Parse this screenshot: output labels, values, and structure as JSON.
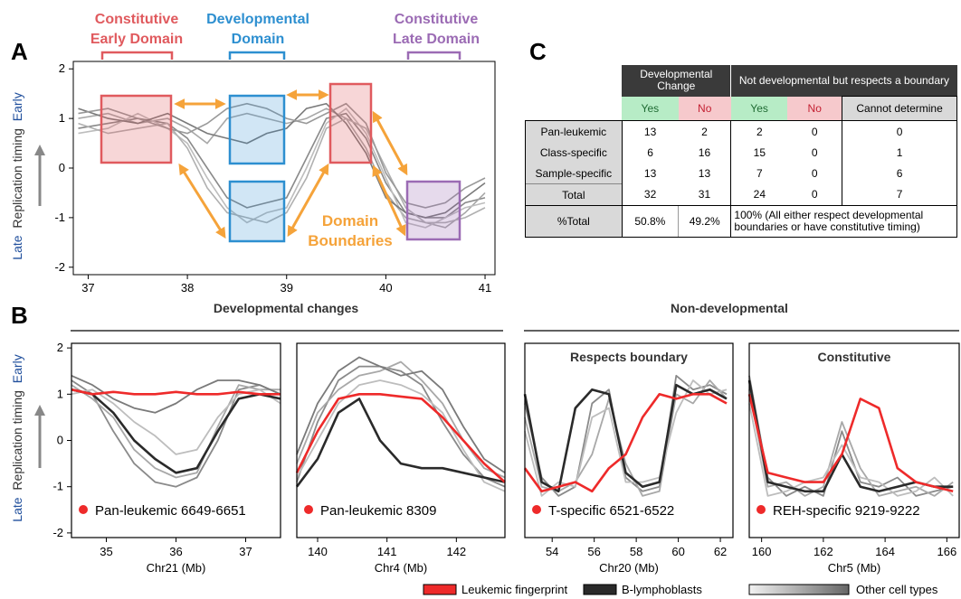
{
  "panel_labels": {
    "a": "A",
    "b": "B",
    "c": "C"
  },
  "panel_a": {
    "domains": [
      {
        "line1": "Constitutive",
        "line2": "Early Domain",
        "color": "#e05a5e"
      },
      {
        "line1": "Developmental",
        "line2": "Domain",
        "color": "#2d8fd0"
      },
      {
        "line1": "Constitutive",
        "line2": "Late Domain",
        "color": "#9b6bb4"
      }
    ],
    "boundary_label_1": "Domain",
    "boundary_label_2": "Boundaries",
    "boundary_color": "#f5a33a",
    "ylabel_late": "Late",
    "ylabel_main": "Replication timing",
    "ylabel_early": "Early",
    "xticks": [
      "37",
      "38",
      "39",
      "40",
      "41"
    ],
    "yticks": [
      "2",
      "1",
      "0",
      "-1",
      "-2"
    ]
  },
  "panel_b": {
    "section_developmental": "Developmental changes",
    "section_nondevelopmental": "Non-developmental",
    "subplots": [
      {
        "title": "",
        "legend": "Pan-leukemic 6649-6651",
        "xlabel": "Chr21 (Mb)",
        "xticks": [
          "35",
          "36",
          "37"
        ]
      },
      {
        "title": "",
        "legend": "Pan-leukemic 8309",
        "xlabel": "Chr4 (Mb)",
        "xticks": [
          "140",
          "141",
          "142"
        ]
      },
      {
        "title": "Respects boundary",
        "legend": "T-specific 6521-6522",
        "xlabel": "Chr20 (Mb)",
        "xticks": [
          "54",
          "56",
          "58",
          "60",
          "62"
        ]
      },
      {
        "title": "Constitutive",
        "legend": "REH-specific 9219-9222",
        "xlabel": "Chr5 (Mb)",
        "xticks": [
          "160",
          "162",
          "164",
          "166"
        ]
      }
    ],
    "ylabel_late": "Late",
    "ylabel_main": "Replication timing",
    "ylabel_early": "Early",
    "yticks": [
      "2",
      "1",
      "0",
      "-1",
      "-2"
    ],
    "legend": {
      "leukemic": "Leukemic fingerprint",
      "b_lymph": "B-lymphoblasts",
      "other": "Other cell types"
    },
    "colors": {
      "leukemic": "#ee2a2a",
      "b_lymph": "#2a2a2a",
      "other": "#9a9a9a"
    }
  },
  "panel_c": {
    "header_group_1": "Developmental Change",
    "header_group_2": "Not developmental but respects a boundary",
    "subheaders": [
      "Yes",
      "No",
      "Yes",
      "No",
      "Cannot determine"
    ],
    "rows": [
      {
        "label": "Pan-leukemic",
        "values": [
          "13",
          "2",
          "2",
          "0",
          "0"
        ]
      },
      {
        "label": "Class-specific",
        "values": [
          "6",
          "16",
          "15",
          "0",
          "1"
        ]
      },
      {
        "label": "Sample-specific",
        "values": [
          "13",
          "13",
          "7",
          "0",
          "6"
        ]
      },
      {
        "label": "Total",
        "values": [
          "32",
          "31",
          "24",
          "0",
          "7"
        ]
      }
    ],
    "pct_row": {
      "label": "%Total",
      "dev_yes": "50.8%",
      "dev_no": "49.2%",
      "note": "100% (All either respect developmental boundaries or have constitutive timing)"
    }
  },
  "chart_data": [
    {
      "type": "line",
      "panel": "A",
      "xlabel": "",
      "ylabel": "Replication timing",
      "xlim": [
        36.85,
        41.1
      ],
      "ylim": [
        -2.15,
        2.15
      ],
      "xticks": [
        37,
        38,
        39,
        40,
        41
      ],
      "yticks": [
        2,
        1,
        0,
        -1,
        -2
      ],
      "series_color": "#9a9a9a",
      "x": [
        36.9,
        37.2,
        37.5,
        37.8,
        38.0,
        38.2,
        38.4,
        38.6,
        38.8,
        39.0,
        39.2,
        39.4,
        39.6,
        39.8,
        40.0,
        40.2,
        40.4,
        40.6,
        40.8,
        41.0
      ],
      "series": [
        {
          "values": [
            0.8,
            0.9,
            1.0,
            0.9,
            0.6,
            0.0,
            -0.6,
            -0.8,
            -0.7,
            -0.6,
            0.2,
            1.0,
            1.1,
            0.6,
            -0.3,
            -0.9,
            -1.0,
            -1.0,
            -0.7,
            -0.6
          ]
        },
        {
          "values": [
            1.0,
            1.1,
            0.9,
            1.0,
            0.8,
            0.5,
            1.0,
            1.1,
            1.0,
            0.9,
            1.0,
            1.2,
            1.0,
            0.4,
            -0.5,
            -1.0,
            -1.1,
            -1.2,
            -0.9,
            -0.5
          ]
        },
        {
          "values": [
            0.7,
            0.8,
            1.1,
            0.8,
            0.5,
            -0.2,
            -0.8,
            -1.1,
            -0.9,
            -0.8,
            0.0,
            0.9,
            1.2,
            0.7,
            -0.2,
            -1.1,
            -1.2,
            -1.0,
            -0.8,
            -0.7
          ]
        },
        {
          "values": [
            1.2,
            1.0,
            0.9,
            1.1,
            0.9,
            0.7,
            0.6,
            0.5,
            0.7,
            0.8,
            1.2,
            1.3,
            0.9,
            0.3,
            -0.6,
            -0.9,
            -1.0,
            -0.9,
            -0.6,
            -0.3
          ]
        },
        {
          "values": [
            0.9,
            0.7,
            0.8,
            0.9,
            0.4,
            -0.4,
            -0.9,
            -1.0,
            -1.1,
            -0.9,
            -0.2,
            0.8,
            1.0,
            0.8,
            0.0,
            -0.8,
            -1.1,
            -1.1,
            -1.0,
            -0.8
          ]
        },
        {
          "values": [
            1.1,
            1.2,
            1.0,
            0.8,
            0.7,
            0.9,
            1.2,
            1.3,
            1.2,
            1.0,
            0.9,
            1.1,
            1.3,
            0.9,
            -0.1,
            -0.7,
            -0.8,
            -0.7,
            -0.4,
            -0.2
          ]
        }
      ]
    },
    {
      "type": "line",
      "panel": "B-1",
      "xlabel": "Chr21 (Mb)",
      "ylabel": "Replication timing",
      "xlim": [
        34.5,
        37.5
      ],
      "ylim": [
        -2.1,
        2.1
      ],
      "xticks": [
        35,
        36,
        37
      ],
      "x": [
        34.5,
        34.8,
        35.1,
        35.4,
        35.7,
        36.0,
        36.3,
        36.6,
        36.9,
        37.2,
        37.5
      ],
      "series": [
        {
          "name": "Leukemic fingerprint",
          "role": "leukemic",
          "values": [
            1.1,
            1.0,
            1.05,
            1.0,
            1.0,
            1.05,
            1.0,
            1.0,
            1.05,
            1.0,
            1.0
          ]
        },
        {
          "name": "B-lymphoblasts",
          "role": "b_lymph",
          "values": [
            1.1,
            1.0,
            0.6,
            0.0,
            -0.4,
            -0.7,
            -0.6,
            0.2,
            0.9,
            1.0,
            0.9
          ]
        },
        {
          "role": "other",
          "values": [
            1.3,
            1.0,
            0.2,
            -0.5,
            -0.9,
            -1.0,
            -0.8,
            0.0,
            1.1,
            1.2,
            1.0
          ]
        },
        {
          "role": "other",
          "values": [
            1.2,
            0.9,
            0.5,
            -0.2,
            -0.6,
            -0.8,
            -0.7,
            0.3,
            1.2,
            1.1,
            1.1
          ]
        },
        {
          "role": "other",
          "values": [
            1.0,
            1.1,
            0.8,
            0.4,
            0.1,
            -0.3,
            -0.2,
            0.5,
            1.0,
            1.1,
            0.8
          ]
        },
        {
          "role": "other",
          "values": [
            1.4,
            1.2,
            0.9,
            0.7,
            0.6,
            0.8,
            1.1,
            1.3,
            1.3,
            1.2,
            1.0
          ]
        }
      ]
    },
    {
      "type": "line",
      "panel": "B-2",
      "xlabel": "Chr4 (Mb)",
      "xlim": [
        139.7,
        142.7
      ],
      "ylim": [
        -2.1,
        2.1
      ],
      "xticks": [
        140,
        141,
        142
      ],
      "x": [
        139.7,
        140.0,
        140.3,
        140.6,
        140.9,
        141.2,
        141.5,
        141.8,
        142.1,
        142.4,
        142.7
      ],
      "series": [
        {
          "name": "Leukemic fingerprint",
          "role": "leukemic",
          "values": [
            -0.7,
            0.2,
            0.9,
            1.0,
            1.0,
            0.95,
            0.9,
            0.5,
            0.0,
            -0.5,
            -0.9
          ]
        },
        {
          "name": "B-lymphoblasts",
          "role": "b_lymph",
          "values": [
            -1.0,
            -0.4,
            0.6,
            0.9,
            0.0,
            -0.5,
            -0.6,
            -0.6,
            -0.7,
            -0.8,
            -0.9
          ]
        },
        {
          "role": "other",
          "values": [
            -0.9,
            0.4,
            1.3,
            1.6,
            1.6,
            1.5,
            1.2,
            0.4,
            -0.3,
            -0.8,
            -1.0
          ]
        },
        {
          "role": "other",
          "values": [
            -0.5,
            0.6,
            1.1,
            1.4,
            1.5,
            1.7,
            1.3,
            0.8,
            0.0,
            -0.6,
            -0.8
          ]
        },
        {
          "role": "other",
          "values": [
            -0.8,
            0.0,
            0.8,
            1.2,
            1.3,
            1.2,
            1.0,
            0.6,
            -0.2,
            -0.9,
            -1.1
          ]
        },
        {
          "role": "other",
          "values": [
            -0.3,
            0.8,
            1.5,
            1.8,
            1.6,
            1.4,
            1.5,
            1.1,
            0.3,
            -0.4,
            -0.7
          ]
        }
      ]
    },
    {
      "type": "line",
      "panel": "B-3",
      "title": "Respects boundary",
      "xlabel": "Chr20 (Mb)",
      "xlim": [
        52.7,
        62.6
      ],
      "ylim": [
        -2.1,
        2.1
      ],
      "xticks": [
        54,
        56,
        58,
        60,
        62
      ],
      "x": [
        52.7,
        53.5,
        54.3,
        55.1,
        55.9,
        56.7,
        57.5,
        58.3,
        59.1,
        59.9,
        60.7,
        61.5,
        62.3
      ],
      "series": [
        {
          "name": "Leukemic fingerprint",
          "role": "leukemic",
          "values": [
            -0.6,
            -1.1,
            -1.0,
            -0.9,
            -1.1,
            -0.6,
            -0.3,
            0.5,
            1.0,
            0.9,
            1.0,
            1.0,
            0.8
          ]
        },
        {
          "name": "B-lymphoblasts",
          "role": "b_lymph",
          "values": [
            1.0,
            -0.9,
            -1.1,
            0.7,
            1.1,
            1.0,
            -0.7,
            -1.0,
            -0.9,
            1.2,
            1.0,
            1.1,
            0.9
          ]
        },
        {
          "role": "other",
          "values": [
            0.8,
            -0.8,
            -1.2,
            -1.0,
            0.8,
            1.1,
            -0.8,
            -1.1,
            -1.0,
            1.4,
            1.1,
            1.2,
            1.0
          ]
        },
        {
          "role": "other",
          "values": [
            0.5,
            -1.0,
            -1.1,
            -0.9,
            -0.3,
            0.9,
            -0.5,
            -1.2,
            -1.1,
            1.0,
            0.8,
            1.3,
            0.9
          ]
        },
        {
          "role": "other",
          "values": [
            0.2,
            -1.2,
            -0.9,
            -1.0,
            0.5,
            0.7,
            -0.9,
            -0.9,
            -0.8,
            0.6,
            1.3,
            1.0,
            1.1
          ]
        }
      ]
    },
    {
      "type": "line",
      "panel": "B-4",
      "title": "Constitutive",
      "xlabel": "Chr5 (Mb)",
      "xlim": [
        159.6,
        166.4
      ],
      "ylim": [
        -2.1,
        2.1
      ],
      "xticks": [
        160,
        162,
        164,
        166
      ],
      "x": [
        159.6,
        160.2,
        160.8,
        161.4,
        162.0,
        162.6,
        163.2,
        163.8,
        164.4,
        165.0,
        165.6,
        166.2
      ],
      "series": [
        {
          "name": "Leukemic fingerprint",
          "role": "leukemic",
          "values": [
            1.0,
            -0.7,
            -0.8,
            -0.9,
            -0.9,
            -0.3,
            0.9,
            0.7,
            -0.6,
            -0.9,
            -1.0,
            -1.1
          ]
        },
        {
          "name": "B-lymphoblasts",
          "role": "b_lymph",
          "values": [
            1.3,
            -0.9,
            -1.0,
            -1.1,
            -1.1,
            -0.3,
            -1.0,
            -1.1,
            -1.0,
            -0.9,
            -1.0,
            -1.0
          ]
        },
        {
          "role": "other",
          "values": [
            1.4,
            -0.8,
            -1.2,
            -1.0,
            -1.2,
            0.2,
            -0.9,
            -1.0,
            -0.8,
            -1.2,
            -1.1,
            -1.0
          ]
        },
        {
          "role": "other",
          "values": [
            1.1,
            -1.0,
            -0.9,
            -1.2,
            -1.0,
            0.4,
            -0.6,
            -1.2,
            -1.1,
            -1.0,
            -1.2,
            -0.9
          ]
        },
        {
          "role": "other",
          "values": [
            0.8,
            -1.2,
            -1.1,
            -0.9,
            -0.8,
            -0.1,
            -0.8,
            -0.9,
            -1.2,
            -1.1,
            -0.8,
            -1.2
          ]
        }
      ]
    }
  ]
}
